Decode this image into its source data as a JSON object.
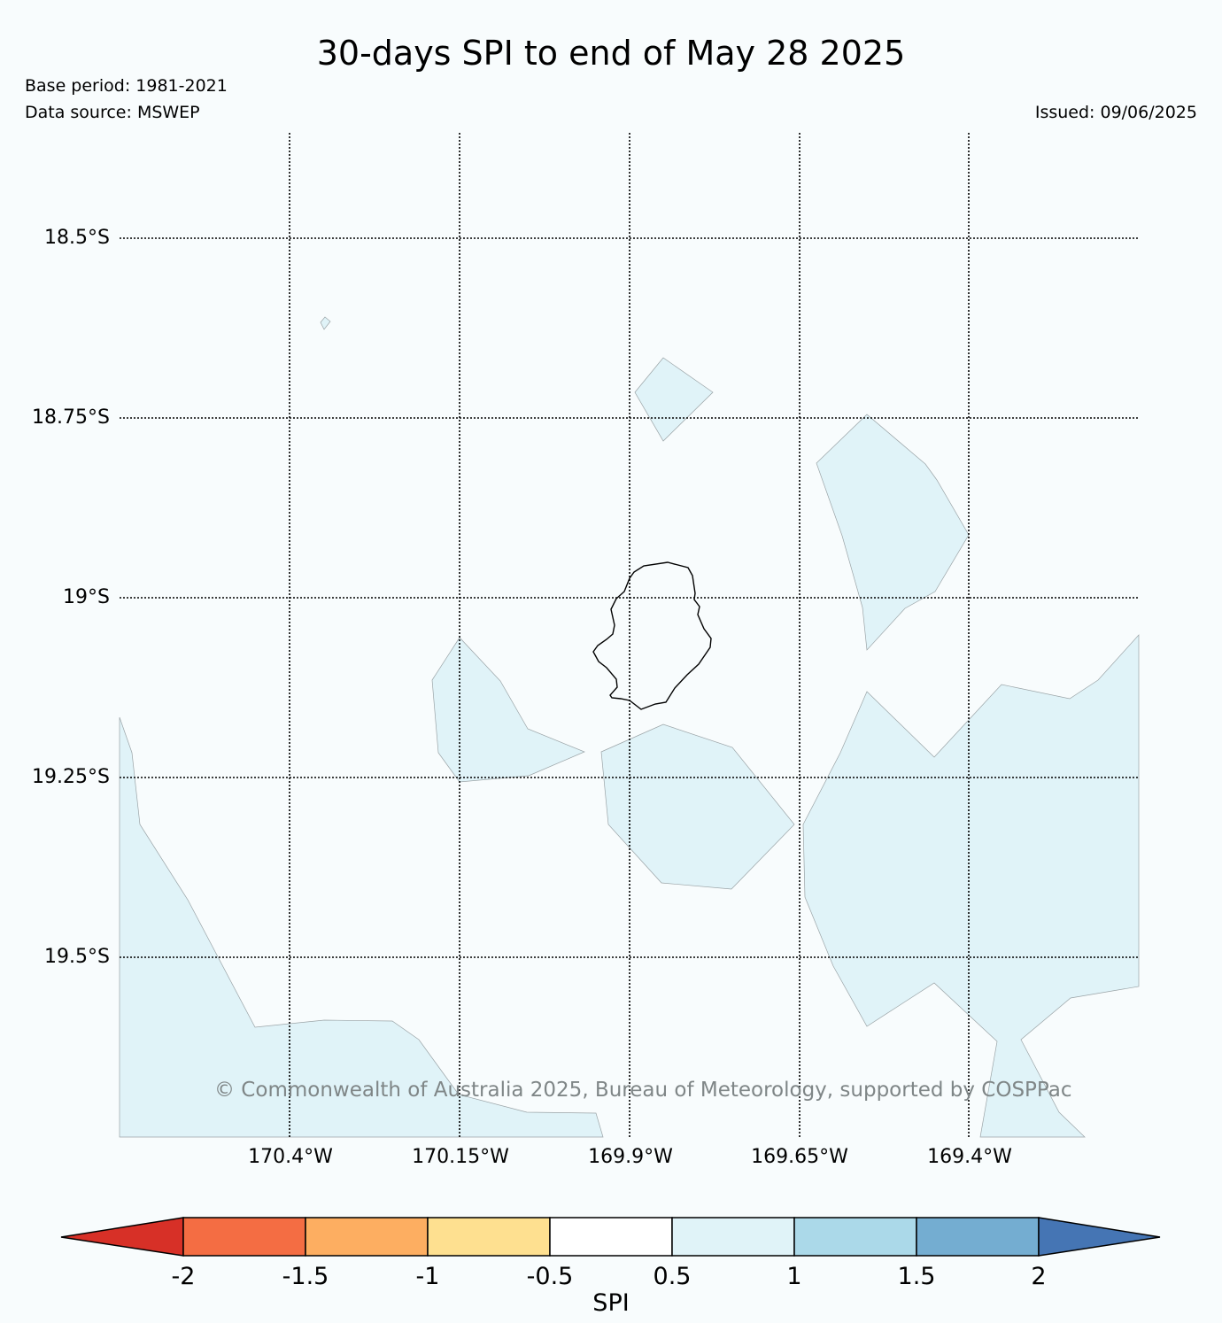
{
  "header": {
    "title": "30-days SPI to end of May 28 2025",
    "base_period": "Base period: 1981-2021",
    "data_source": "Data source: MSWEP",
    "issued": "Issued: 09/06/2025"
  },
  "map": {
    "latitude_labels": [
      "18.5°S",
      "18.75°S",
      "19°S",
      "19.25°S",
      "19.5°S"
    ],
    "longitude_labels": [
      "170.4°W",
      "170.15°W",
      "169.9°W",
      "169.65°W",
      "169.4°W"
    ],
    "copyright": "© Commonwealth of Australia 2025, Bureau of Meteorology, supported by COSPPac",
    "shaded_class": "0.5 to 1",
    "shade_color": "#e0f3f8"
  },
  "colorbar": {
    "title": "SPI",
    "tick_labels": [
      "-2",
      "-1.5",
      "-1",
      "-0.5",
      "0.5",
      "1",
      "1.5",
      "2"
    ],
    "colors": [
      "#d73027",
      "#f46d43",
      "#fdae61",
      "#fee090",
      "#ffffff",
      "#e0f3f8",
      "#abd9e9",
      "#74add1",
      "#4575b4"
    ]
  }
}
